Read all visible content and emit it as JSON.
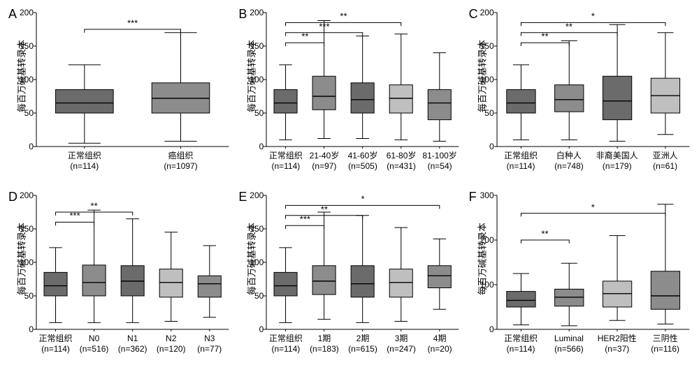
{
  "y_axis_title": "每百万碱基转录本",
  "background_color": "#ffffff",
  "axis_color": "#000000",
  "box_stroke": "#000000",
  "median_stroke": "#000000",
  "ticklabel_fontsize": 12,
  "panel_letter_fontsize": 18,
  "xlabel_fontsize": 12,
  "sig_fontsize": 13,
  "box_rel_width": 0.6,
  "palette": {
    "dark_gray": "#6b6b6b",
    "mid_gray": "#8c8c8c",
    "light_gray": "#bfbfbf",
    "pale_gray": "#d6d6d6"
  },
  "panels": [
    {
      "id": "A",
      "letter": "A",
      "ylim": [
        0,
        200
      ],
      "ytick_step": 50,
      "groups": [
        {
          "label_line1": "正常组织",
          "label_line2": "(n=114)",
          "fill": "#6b6b6b",
          "min": 5,
          "q1": 50,
          "median": 65,
          "q3": 85,
          "max": 122
        },
        {
          "label_line1": "癌组织",
          "label_line2": "(n=1097)",
          "fill": "#8c8c8c",
          "min": 8,
          "q1": 50,
          "median": 72,
          "q3": 95,
          "max": 170
        }
      ],
      "sig": [
        {
          "from": 0,
          "to": 1,
          "y": 175,
          "label": "***"
        }
      ]
    },
    {
      "id": "B",
      "letter": "B",
      "ylim": [
        0,
        200
      ],
      "ytick_step": 50,
      "groups": [
        {
          "label_line1": "正常组织",
          "label_line2": "(n=114)",
          "fill": "#6b6b6b",
          "min": 10,
          "q1": 50,
          "median": 65,
          "q3": 85,
          "max": 122
        },
        {
          "label_line1": "21-40岁",
          "label_line2": "(n=97)",
          "fill": "#8c8c8c",
          "min": 12,
          "q1": 55,
          "median": 75,
          "q3": 105,
          "max": 188
        },
        {
          "label_line1": "41-60岁",
          "label_line2": "(n=505)",
          "fill": "#6b6b6b",
          "min": 12,
          "q1": 50,
          "median": 70,
          "q3": 95,
          "max": 165
        },
        {
          "label_line1": "61-80岁",
          "label_line2": "(n=431)",
          "fill": "#bfbfbf",
          "min": 10,
          "q1": 50,
          "median": 72,
          "q3": 92,
          "max": 168
        },
        {
          "label_line1": "81-100岁",
          "label_line2": "(n=54)",
          "fill": "#8c8c8c",
          "min": 8,
          "q1": 40,
          "median": 65,
          "q3": 85,
          "max": 140
        }
      ],
      "sig": [
        {
          "from": 0,
          "to": 1,
          "y": 155,
          "label": "**"
        },
        {
          "from": 0,
          "to": 2,
          "y": 170,
          "label": "***"
        },
        {
          "from": 0,
          "to": 3,
          "y": 185,
          "label": "**"
        }
      ]
    },
    {
      "id": "C",
      "letter": "C",
      "ylim": [
        0,
        200
      ],
      "ytick_step": 50,
      "groups": [
        {
          "label_line1": "正常组织",
          "label_line2": "(n=114)",
          "fill": "#6b6b6b",
          "min": 10,
          "q1": 50,
          "median": 65,
          "q3": 85,
          "max": 122
        },
        {
          "label_line1": "白种人",
          "label_line2": "(n=748)",
          "fill": "#8c8c8c",
          "min": 10,
          "q1": 52,
          "median": 70,
          "q3": 92,
          "max": 158
        },
        {
          "label_line1": "非裔美国人",
          "label_line2": "(n=179)",
          "fill": "#6b6b6b",
          "min": 8,
          "q1": 40,
          "median": 68,
          "q3": 105,
          "max": 182
        },
        {
          "label_line1": "亚洲人",
          "label_line2": "(n=61)",
          "fill": "#bfbfbf",
          "min": 18,
          "q1": 50,
          "median": 76,
          "q3": 102,
          "max": 170
        }
      ],
      "sig": [
        {
          "from": 0,
          "to": 1,
          "y": 155,
          "label": "**"
        },
        {
          "from": 0,
          "to": 2,
          "y": 170,
          "label": "**"
        },
        {
          "from": 0,
          "to": 3,
          "y": 185,
          "label": "*"
        }
      ]
    },
    {
      "id": "D",
      "letter": "D",
      "ylim": [
        0,
        200
      ],
      "ytick_step": 50,
      "groups": [
        {
          "label_line1": "正常组织",
          "label_line2": "(n=114)",
          "fill": "#6b6b6b",
          "min": 10,
          "q1": 50,
          "median": 65,
          "q3": 85,
          "max": 122
        },
        {
          "label_line1": "N0",
          "label_line2": "(n=516)",
          "fill": "#8c8c8c",
          "min": 10,
          "q1": 50,
          "median": 70,
          "q3": 96,
          "max": 178
        },
        {
          "label_line1": "N1",
          "label_line2": "(n=362)",
          "fill": "#6b6b6b",
          "min": 10,
          "q1": 50,
          "median": 72,
          "q3": 95,
          "max": 165
        },
        {
          "label_line1": "N2",
          "label_line2": "(n=120)",
          "fill": "#bfbfbf",
          "min": 12,
          "q1": 48,
          "median": 70,
          "q3": 90,
          "max": 145
        },
        {
          "label_line1": "N3",
          "label_line2": "(n=77)",
          "fill": "#8c8c8c",
          "min": 18,
          "q1": 48,
          "median": 68,
          "q3": 80,
          "max": 125
        }
      ],
      "sig": [
        {
          "from": 0,
          "to": 1,
          "y": 160,
          "label": "***"
        },
        {
          "from": 0,
          "to": 2,
          "y": 175,
          "label": "**"
        }
      ]
    },
    {
      "id": "E",
      "letter": "E",
      "ylim": [
        0,
        200
      ],
      "ytick_step": 50,
      "groups": [
        {
          "label_line1": "正常组织",
          "label_line2": "(n=114)",
          "fill": "#6b6b6b",
          "min": 10,
          "q1": 50,
          "median": 65,
          "q3": 85,
          "max": 122
        },
        {
          "label_line1": "1期",
          "label_line2": "(n=183)",
          "fill": "#8c8c8c",
          "min": 15,
          "q1": 52,
          "median": 72,
          "q3": 95,
          "max": 175
        },
        {
          "label_line1": "2期",
          "label_line2": "(n=615)",
          "fill": "#6b6b6b",
          "min": 10,
          "q1": 48,
          "median": 68,
          "q3": 95,
          "max": 170
        },
        {
          "label_line1": "3期",
          "label_line2": "(n=247)",
          "fill": "#bfbfbf",
          "min": 12,
          "q1": 48,
          "median": 70,
          "q3": 90,
          "max": 152
        },
        {
          "label_line1": "4期",
          "label_line2": "(n=20)",
          "fill": "#8c8c8c",
          "min": 30,
          "q1": 62,
          "median": 80,
          "q3": 95,
          "max": 135
        }
      ],
      "sig": [
        {
          "from": 0,
          "to": 1,
          "y": 155,
          "label": "***"
        },
        {
          "from": 0,
          "to": 2,
          "y": 170,
          "label": "**"
        },
        {
          "from": 0,
          "to": 4,
          "y": 185,
          "label": "*"
        }
      ]
    },
    {
      "id": "F",
      "letter": "F",
      "ylim": [
        0,
        300
      ],
      "ytick_step": 100,
      "groups": [
        {
          "label_line1": "正常组织",
          "label_line2": "(n=114)",
          "fill": "#6b6b6b",
          "min": 10,
          "q1": 50,
          "median": 65,
          "q3": 85,
          "max": 125
        },
        {
          "label_line1": "Luminal",
          "label_line2": "(n=566)",
          "fill": "#8c8c8c",
          "min": 8,
          "q1": 52,
          "median": 72,
          "q3": 90,
          "max": 148
        },
        {
          "label_line1": "HER2阳性",
          "label_line2": "(n=37)",
          "fill": "#bfbfbf",
          "min": 20,
          "q1": 50,
          "median": 80,
          "q3": 108,
          "max": 210
        },
        {
          "label_line1": "三阴性",
          "label_line2": "(n=116)",
          "fill": "#8c8c8c",
          "min": 12,
          "q1": 45,
          "median": 75,
          "q3": 130,
          "max": 280
        }
      ],
      "sig": [
        {
          "from": 0,
          "to": 1,
          "y": 200,
          "label": "**"
        },
        {
          "from": 0,
          "to": 3,
          "y": 260,
          "label": "*"
        }
      ]
    }
  ]
}
